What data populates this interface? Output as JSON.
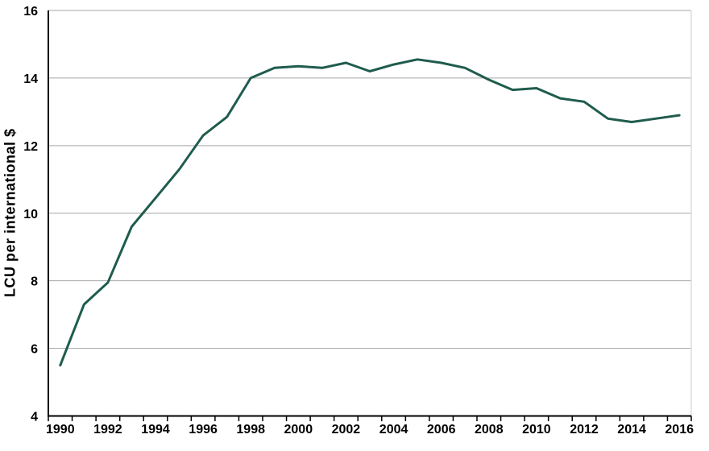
{
  "chart_data": {
    "type": "line",
    "title": "",
    "xlabel": "",
    "ylabel": "LCU per international $",
    "x": [
      1990,
      1991,
      1992,
      1993,
      1994,
      1995,
      1996,
      1997,
      1998,
      1999,
      2000,
      2001,
      2002,
      2003,
      2004,
      2005,
      2006,
      2007,
      2008,
      2009,
      2010,
      2011,
      2012,
      2013,
      2014,
      2015,
      2016
    ],
    "values": [
      5.5,
      7.3,
      7.95,
      9.6,
      10.45,
      11.3,
      12.3,
      12.85,
      14.0,
      14.3,
      14.35,
      14.3,
      14.45,
      14.2,
      14.4,
      14.55,
      14.45,
      14.3,
      13.95,
      13.65,
      13.7,
      13.4,
      13.3,
      12.8,
      12.7,
      12.8,
      12.9
    ],
    "ylim": [
      4,
      16
    ],
    "yticks": [
      4,
      6,
      8,
      10,
      12,
      14,
      16
    ],
    "xtick_labels": [
      "1990",
      "1992",
      "1994",
      "1996",
      "1998",
      "2000",
      "2002",
      "2004",
      "2006",
      "2008",
      "2010",
      "2012",
      "2014",
      "2016"
    ],
    "grid": "horizontal",
    "legend": "none",
    "colors": {
      "line": "#1f5c4e",
      "gridline": "#a6a6a6",
      "axis": "#000000",
      "plot_border": "#d9d9d9",
      "text": "#000000",
      "background": "#ffffff"
    }
  }
}
